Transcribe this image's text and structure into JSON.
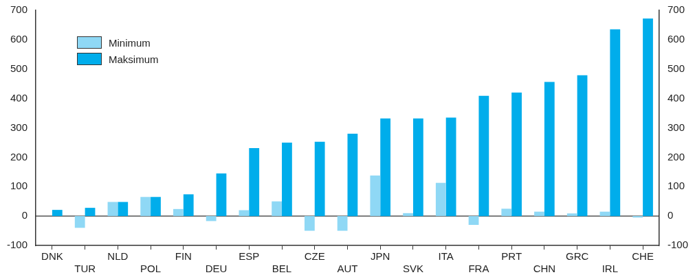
{
  "chart_data": {
    "type": "bar",
    "categories": [
      "DNK",
      "TUR",
      "NLD",
      "POL",
      "FIN",
      "DEU",
      "ESP",
      "BEL",
      "CZE",
      "AUT",
      "JPN",
      "SVK",
      "ITA",
      "FRA",
      "PRT",
      "CHN",
      "GRC",
      "IRL",
      "CHE"
    ],
    "series": [
      {
        "name": "Minimum",
        "color": "#8fd8f5",
        "values": [
          null,
          -40,
          48,
          65,
          24,
          -17,
          20,
          50,
          -50,
          -50,
          138,
          10,
          113,
          -30,
          25,
          15,
          9,
          15,
          -5
        ]
      },
      {
        "name": "Maksimum",
        "color": "#00adeb",
        "values": [
          21,
          28,
          48,
          65,
          74,
          145,
          231,
          250,
          253,
          280,
          332,
          332,
          335,
          409,
          420,
          456,
          479,
          635,
          672
        ]
      }
    ],
    "ylim": [
      -100,
      700
    ],
    "yticks": [
      -100,
      0,
      100,
      200,
      300,
      400,
      500,
      600,
      700
    ],
    "y2lim": [
      -100,
      700
    ],
    "y2ticks": [
      -100,
      0,
      100,
      200,
      300,
      400,
      500,
      600,
      700
    ],
    "ref_lines": [
      {
        "axis": "y",
        "value": 0,
        "color": "#333333"
      }
    ],
    "grid": false,
    "legend": "top left"
  }
}
